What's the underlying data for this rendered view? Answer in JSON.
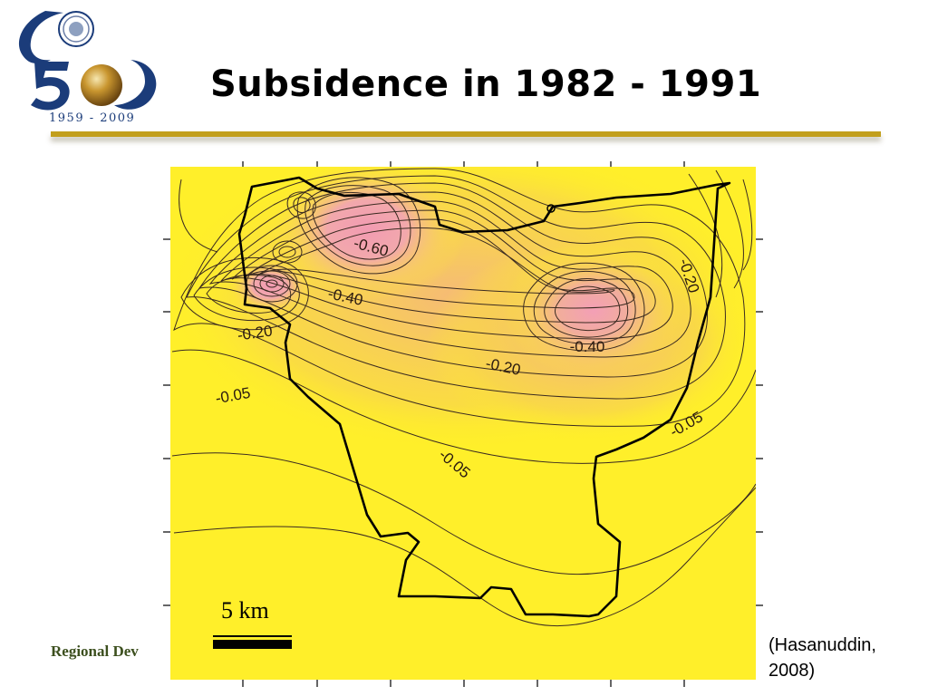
{
  "slide": {
    "title": "Subsidence in 1982 - 1991",
    "logo_years": "1959 - 2009",
    "footer_text": "Regional Dev",
    "citation_line1": "(Hasanuddin,",
    "citation_line2": "2008)"
  },
  "map": {
    "scale_label": "5 km",
    "contour_labels": [
      "-0.60",
      "-0.40",
      "-0.20",
      "-0.05",
      "-0.20",
      "-0.40",
      "-0.20",
      "-0.05",
      "-0.05"
    ],
    "colors": {
      "background": "#ffef2a",
      "max_subsidence": "#f09fb5",
      "contour": "#3a2a20",
      "boundary": "#000000",
      "accent_rule": "#c29f1c",
      "logo_blue": "#1b3c7a",
      "footer_green": "#3c4f1e"
    }
  }
}
